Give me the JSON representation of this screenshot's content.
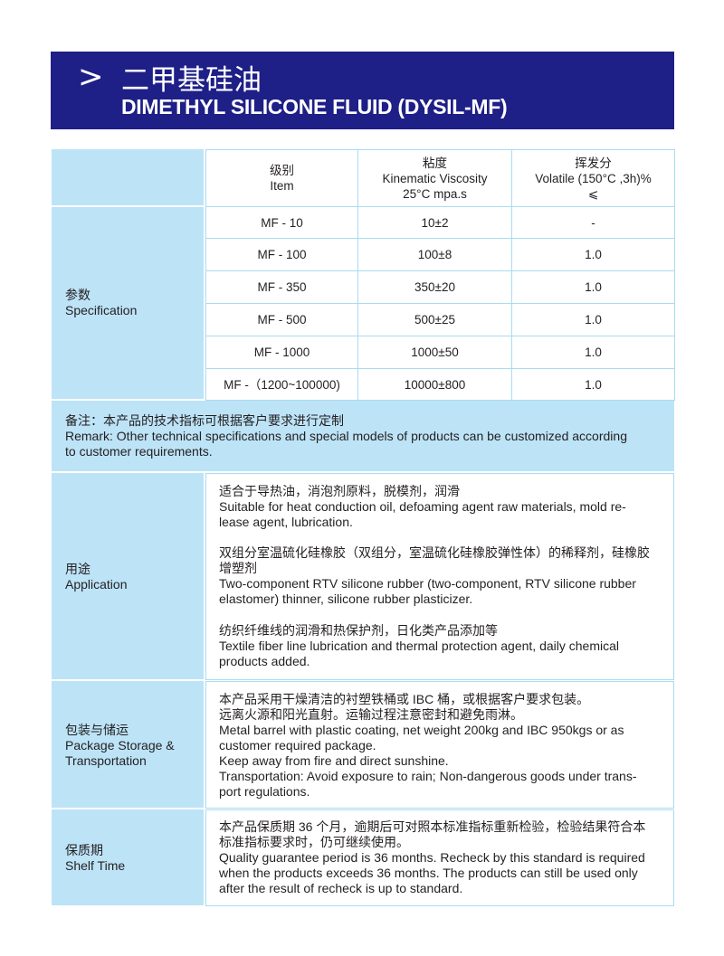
{
  "header": {
    "chevron": ">",
    "title_cn": "二甲基硅油",
    "title_en": "DIMETHYL SILICONE FLUID (DYSIL-MF)"
  },
  "colors": {
    "banner": "#1e1f87",
    "label_bg": "#bde3f7",
    "border": "#a8dcf2"
  },
  "spec_table": {
    "columns": [
      {
        "cn": "级别",
        "en": "Item"
      },
      {
        "cn": "粘度",
        "en": "Kinematic Viscosity",
        "en2": "25°C mpa.s"
      },
      {
        "cn": "挥发分",
        "en": "Volatile (150°C ,3h)%",
        "en2": "⩽"
      }
    ],
    "label_cn": "参数",
    "label_en": "Specification",
    "rows": [
      [
        "MF - 10",
        "10±2",
        "-"
      ],
      [
        "MF - 100",
        "100±8",
        "1.0"
      ],
      [
        "MF - 350",
        "350±20",
        "1.0"
      ],
      [
        "MF - 500",
        "500±25",
        "1.0"
      ],
      [
        "MF - 1000",
        "1000±50",
        "1.0"
      ],
      [
        "MF -（1200~100000)",
        "10000±800",
        "1.0"
      ]
    ]
  },
  "remark": {
    "lines": [
      "备注：本产品的技术指标可根据客户要求进行定制",
      "Remark: Other technical specifications and special models of products can be customized according",
      "to customer requirements."
    ]
  },
  "application": {
    "label_cn": "用途",
    "label_en": "Application",
    "lines1": [
      "适合于导热油，消泡剂原料，脱模剂，润滑",
      "Suitable for heat conduction oil, defoaming agent raw materials, mold re-",
      "lease agent, lubrication."
    ],
    "lines2": [
      "双组分室温硫化硅橡胶（双组分，室温硫化硅橡胶弹性体）的稀释剂，硅橡胶",
      "增塑剂",
      "Two-component RTV silicone rubber (two-component, RTV silicone rubber",
      "elastomer) thinner, silicone rubber plasticizer."
    ],
    "lines3": [
      "纺织纤维线的润滑和热保护剂，日化类产品添加等",
      "Textile fiber line lubrication and thermal protection agent, daily chemical",
      "products added."
    ]
  },
  "package": {
    "label_cn": "包装与储运",
    "label_en1": "Package Storage &",
    "label_en2": "Transportation",
    "lines": [
      "本产品采用干燥清洁的衬塑铁桶或 IBC 桶，或根据客户要求包装。",
      "远离火源和阳光直射。运输过程注意密封和避免雨淋。",
      "Metal barrel with plastic coating, net weight 200kg and IBC 950kgs or as",
      "customer required package.",
      "Keep away from fire and direct sunshine.",
      "Transportation: Avoid exposure to rain; Non-dangerous goods under trans-",
      "port regulations."
    ]
  },
  "shelf": {
    "label_cn": "保质期",
    "label_en": "Shelf Time",
    "lines": [
      "本产品保质期 36 个月，逾期后可对照本标准指标重新检验，检验结果符合本",
      "标准指标要求时，仍可继续使用。",
      "Quality guarantee period is 36 months. Recheck by this standard is required",
      "when the products exceeds 36 months. The products can still be used only",
      "after the result of recheck is up to standard."
    ]
  }
}
